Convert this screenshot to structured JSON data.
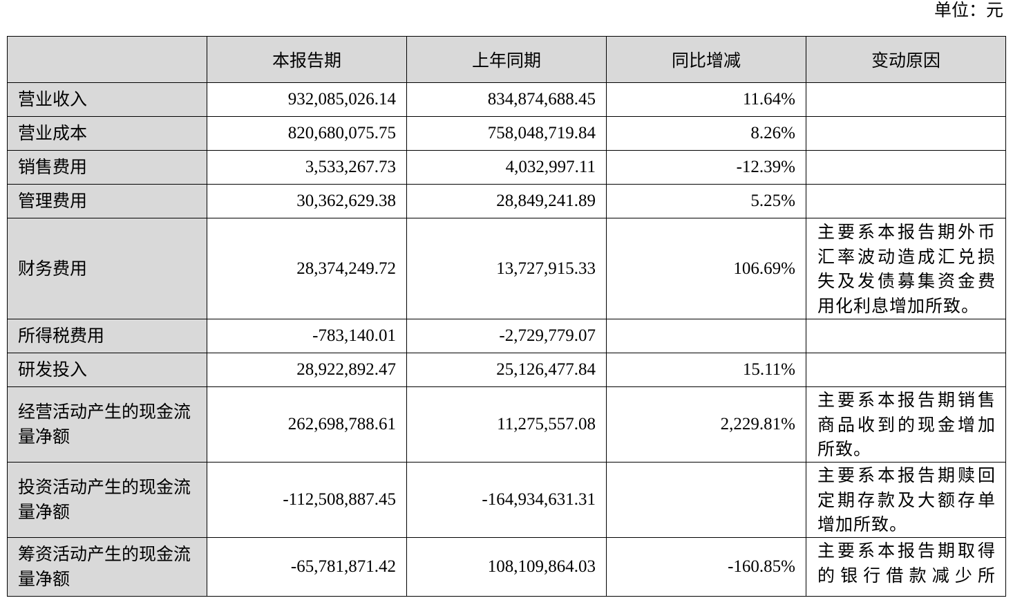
{
  "unit_label": "单位：元",
  "columns": [
    "",
    "本报告期",
    "上年同期",
    "同比增减",
    "变动原因"
  ],
  "rows": [
    {
      "item": "营业收入",
      "current": "932,085,026.14",
      "prior": "834,874,688.45",
      "change": "11.64%",
      "reason": ""
    },
    {
      "item": "营业成本",
      "current": "820,680,075.75",
      "prior": "758,048,719.84",
      "change": "8.26%",
      "reason": ""
    },
    {
      "item": "销售费用",
      "current": "3,533,267.73",
      "prior": "4,032,997.11",
      "change": "-12.39%",
      "reason": ""
    },
    {
      "item": "管理费用",
      "current": "30,362,629.38",
      "prior": "28,849,241.89",
      "change": "5.25%",
      "reason": ""
    },
    {
      "item": "财务费用",
      "current": "28,374,249.72",
      "prior": "13,727,915.33",
      "change": "106.69%",
      "reason": "主要系本报告期外币汇率波动造成汇兑损失及发债募集资金费用化利息增加所致。"
    },
    {
      "item": "所得税费用",
      "current": "-783,140.01",
      "prior": "-2,729,779.07",
      "change": "",
      "reason": ""
    },
    {
      "item": "研发投入",
      "current": "28,922,892.47",
      "prior": "25,126,477.84",
      "change": "15.11%",
      "reason": ""
    },
    {
      "item": "经营活动产生的现金流量净额",
      "current": "262,698,788.61",
      "prior": "11,275,557.08",
      "change": "2,229.81%",
      "reason": "主要系本报告期销售商品收到的现金增加所致。"
    },
    {
      "item": "投资活动产生的现金流量净额",
      "current": "-112,508,887.45",
      "prior": "-164,934,631.31",
      "change": "",
      "reason": "主要系本报告期赎回定期存款及大额存单增加所致。"
    },
    {
      "item": "筹资活动产生的现金流量净额",
      "current": "-65,781,871.42",
      "prior": "108,109,864.03",
      "change": "-160.85%",
      "reason": "主要系本报告期取得的银行借款减少所"
    }
  ]
}
